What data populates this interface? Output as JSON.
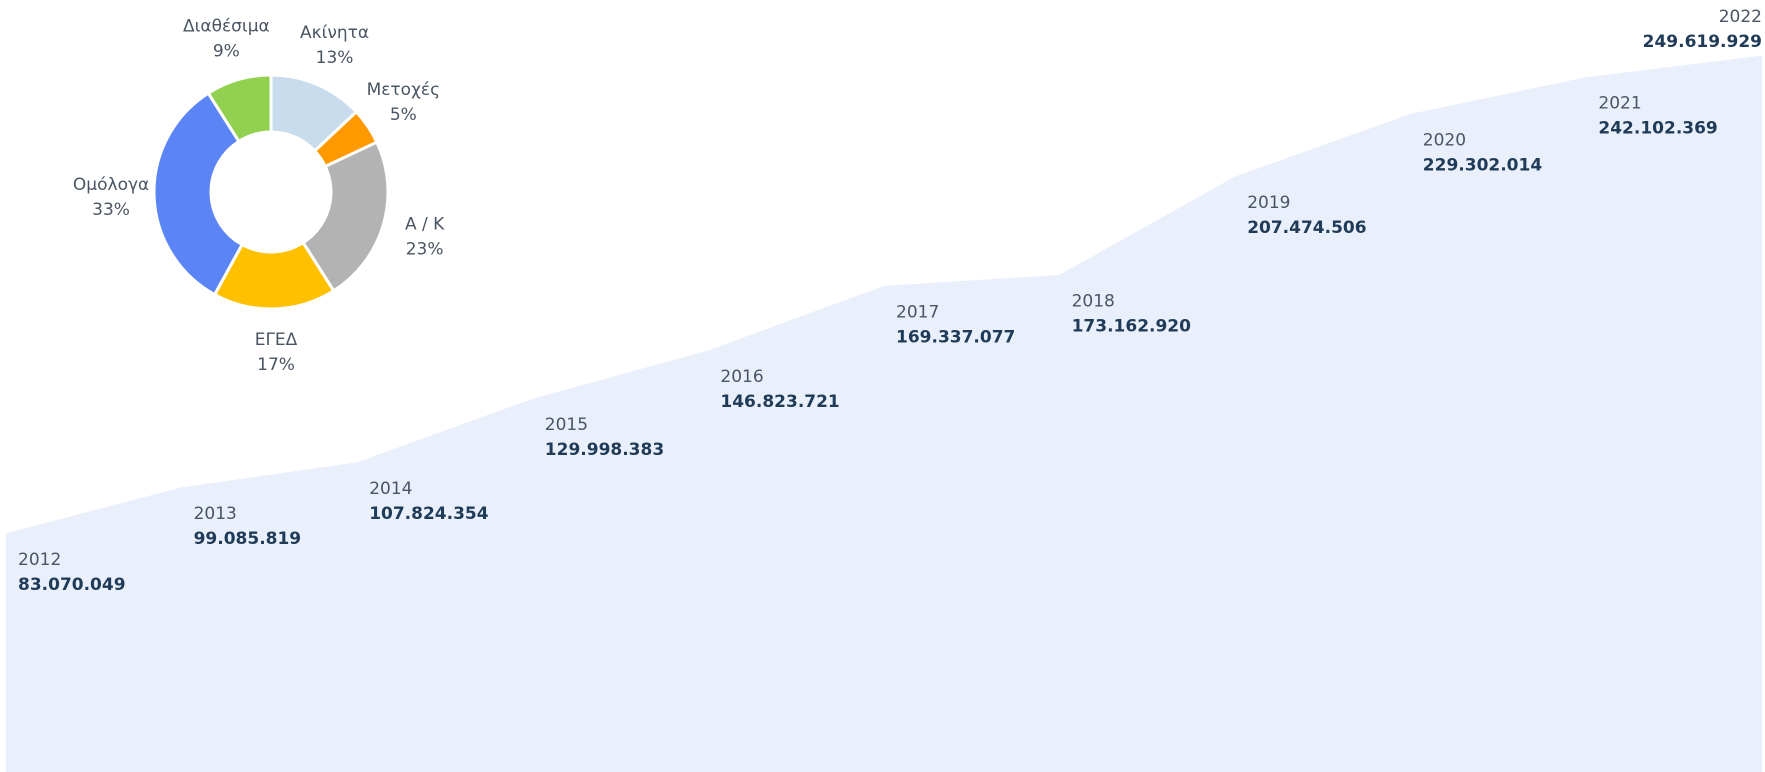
{
  "chart_data": [
    {
      "type": "area",
      "categories": [
        "2012",
        "2013",
        "2014",
        "2015",
        "2016",
        "2017",
        "2018",
        "2019",
        "2020",
        "2021",
        "2022"
      ],
      "values": [
        83070049,
        99085819,
        107824354,
        129998383,
        146823721,
        169337077,
        173162920,
        207474506,
        229302014,
        242102369,
        249619929
      ],
      "value_labels": [
        "83.070.049",
        "99.085.819",
        "107.824.354",
        "129.998.383",
        "146.823.721",
        "169.337.077",
        "173.162.920",
        "207.474.506",
        "229.302.014",
        "242.102.369",
        "249.619.929"
      ],
      "color": "#eaf0fb",
      "ylim": [
        0,
        250000000
      ]
    },
    {
      "type": "pie",
      "categories": [
        "Ακίνητα",
        "Μετοχές",
        "Α / Κ",
        "ΕΓΕΔ",
        "Ομόλογα",
        "Διαθέσιμα"
      ],
      "values": [
        13,
        5,
        23,
        17,
        33,
        9
      ],
      "value_labels": [
        "13%",
        "5%",
        "23%",
        "17%",
        "33%",
        "9%"
      ],
      "colors": [
        "#c9dcee",
        "#ff9900",
        "#b3b3b3",
        "#ffc000",
        "#5b84f5",
        "#92d050"
      ]
    }
  ]
}
